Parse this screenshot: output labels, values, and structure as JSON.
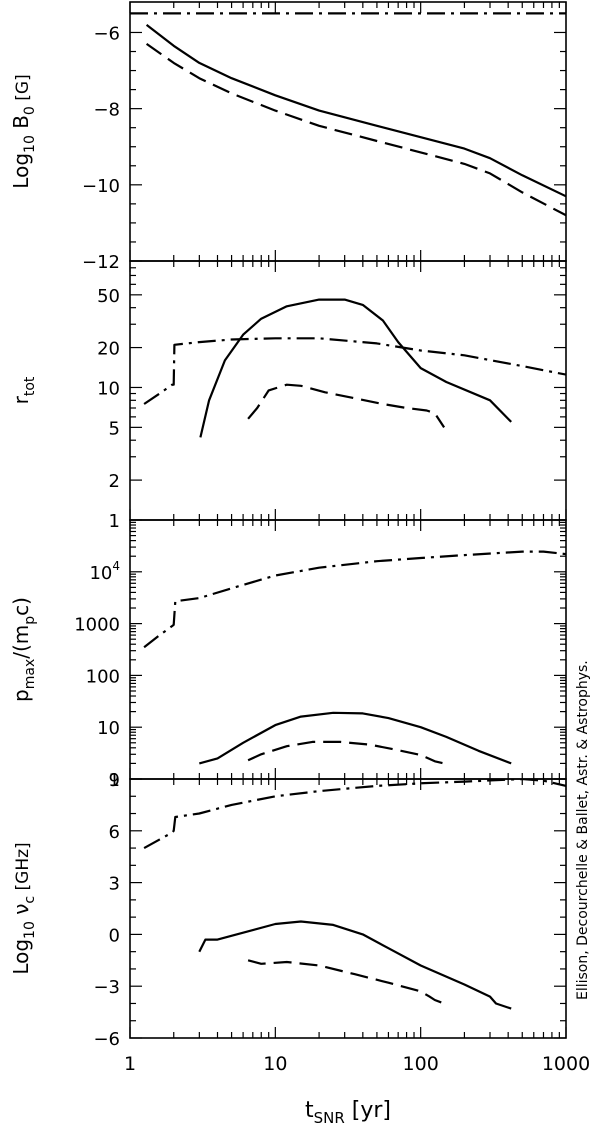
{
  "credit": "Ellison, Decourchelle & Ballet, Astr. & Astrophys.",
  "xaxis": {
    "label_main": "t",
    "label_sub": "SNR",
    "label_unit": "[yr]",
    "range": [
      1,
      1000
    ],
    "scale": "log",
    "tick_labels": [
      "1",
      "10",
      "100",
      "1000"
    ]
  },
  "chart_data": [
    {
      "type": "line",
      "panel": "top",
      "ylabel": {
        "pre": "Log",
        "pre_sub": "10",
        "main": "B",
        "main_sub": "0",
        "unit": "[G]"
      },
      "yscale": "linear",
      "ylim": [
        -12,
        -5.2
      ],
      "yticks": [
        {
          "v": -6,
          "label": "−6"
        },
        {
          "v": -8,
          "label": "−8"
        },
        {
          "v": -10,
          "label": "−10"
        },
        {
          "v": -12,
          "label": "−12"
        }
      ],
      "yminor": [
        -5.5,
        -6.5,
        -7,
        -7.5,
        -8.5,
        -9,
        -9.5,
        -10.5,
        -11,
        -11.5
      ],
      "series": [
        {
          "style": "dashdot",
          "points": [
            [
              1,
              -5.5
            ],
            [
              1000,
              -5.5
            ]
          ]
        },
        {
          "style": "solid",
          "points": [
            [
              1.3,
              -5.8
            ],
            [
              2,
              -6.35
            ],
            [
              3,
              -6.8
            ],
            [
              5,
              -7.2
            ],
            [
              10,
              -7.65
            ],
            [
              20,
              -8.05
            ],
            [
              50,
              -8.45
            ],
            [
              100,
              -8.75
            ],
            [
              200,
              -9.05
            ],
            [
              300,
              -9.3
            ],
            [
              500,
              -9.75
            ],
            [
              1000,
              -10.3
            ]
          ]
        },
        {
          "style": "dashed",
          "points": [
            [
              1.3,
              -6.3
            ],
            [
              2,
              -6.8
            ],
            [
              3,
              -7.2
            ],
            [
              5,
              -7.6
            ],
            [
              10,
              -8.05
            ],
            [
              20,
              -8.45
            ],
            [
              50,
              -8.85
            ],
            [
              100,
              -9.15
            ],
            [
              200,
              -9.45
            ],
            [
              300,
              -9.7
            ],
            [
              500,
              -10.2
            ],
            [
              1000,
              -10.8
            ]
          ]
        }
      ]
    },
    {
      "type": "line",
      "panel": "r_tot",
      "ylabel": {
        "main": "r",
        "main_sub": "tot"
      },
      "yscale": "log",
      "ylim": [
        1,
        90
      ],
      "yticks": [
        {
          "v": 1,
          "label": "1"
        },
        {
          "v": 2,
          "label": "2"
        },
        {
          "v": 5,
          "label": "5"
        },
        {
          "v": 10,
          "label": "10"
        },
        {
          "v": 20,
          "label": "20"
        },
        {
          "v": 50,
          "label": "50"
        }
      ],
      "yminor": [
        3,
        4,
        6,
        7,
        8,
        9,
        30,
        40,
        60,
        70,
        80
      ],
      "series": [
        {
          "style": "dashdot",
          "points": [
            [
              1.25,
              7.5
            ],
            [
              1.6,
              9
            ],
            [
              1.95,
              10.5
            ],
            [
              2.0,
              10.5
            ],
            [
              2.02,
              21
            ],
            [
              3,
              22
            ],
            [
              5,
              23
            ],
            [
              10,
              23.5
            ],
            [
              20,
              23.5
            ],
            [
              50,
              21.5
            ],
            [
              100,
              19
            ],
            [
              200,
              17.5
            ],
            [
              500,
              14.5
            ],
            [
              1000,
              12.5
            ]
          ]
        },
        {
          "style": "solid",
          "points": [
            [
              3.05,
              4.2
            ],
            [
              3.5,
              8
            ],
            [
              4.5,
              16
            ],
            [
              6,
              25
            ],
            [
              8,
              33
            ],
            [
              12,
              41
            ],
            [
              20,
              46
            ],
            [
              30,
              46
            ],
            [
              40,
              42
            ],
            [
              55,
              32
            ],
            [
              70,
              22
            ],
            [
              100,
              14
            ],
            [
              150,
              11
            ],
            [
              300,
              8
            ],
            [
              420,
              5.5
            ]
          ]
        },
        {
          "style": "dashed",
          "points": [
            [
              6.5,
              5.8
            ],
            [
              7.5,
              7
            ],
            [
              9,
              9.5
            ],
            [
              12,
              10.5
            ],
            [
              15,
              10.3
            ],
            [
              22,
              9.2
            ],
            [
              35,
              8.3
            ],
            [
              55,
              7.5
            ],
            [
              80,
              7.0
            ],
            [
              110,
              6.7
            ],
            [
              125,
              6.4
            ],
            [
              145,
              5.0
            ]
          ]
        }
      ]
    },
    {
      "type": "line",
      "panel": "p_max",
      "ylabel": {
        "main": "p",
        "main_sub": "max",
        "mid": "/(m",
        "mid_sub": "p",
        "end": "c)"
      },
      "yscale": "log",
      "ylim": [
        1,
        100000
      ],
      "yticks": [
        {
          "v": 1,
          "label": "1"
        },
        {
          "v": 10,
          "label": "10"
        },
        {
          "v": 100,
          "label": "100"
        },
        {
          "v": 1000,
          "label": "1000"
        },
        {
          "v": 10000,
          "label": "10",
          "sup": "4"
        }
      ],
      "yminor": [],
      "series": [
        {
          "style": "dashdot",
          "points": [
            [
              1.25,
              350
            ],
            [
              1.6,
              600
            ],
            [
              1.95,
              900
            ],
            [
              2.0,
              950
            ],
            [
              2.05,
              2700
            ],
            [
              3,
              3100
            ],
            [
              5,
              4800
            ],
            [
              10,
              8500
            ],
            [
              20,
              12000
            ],
            [
              50,
              16000
            ],
            [
              100,
              18500
            ],
            [
              200,
              21000
            ],
            [
              500,
              24500
            ],
            [
              700,
              24500
            ],
            [
              1000,
              22000
            ]
          ]
        },
        {
          "style": "solid",
          "points": [
            [
              3,
              2.0
            ],
            [
              4,
              2.5
            ],
            [
              6,
              5
            ],
            [
              10,
              11
            ],
            [
              15,
              16
            ],
            [
              25,
              19
            ],
            [
              40,
              18.5
            ],
            [
              60,
              15
            ],
            [
              100,
              10
            ],
            [
              150,
              6.5
            ],
            [
              250,
              3.5
            ],
            [
              420,
              2.0
            ]
          ]
        },
        {
          "style": "dashed",
          "points": [
            [
              6.5,
              2.3
            ],
            [
              8,
              3
            ],
            [
              12,
              4.3
            ],
            [
              18,
              5.2
            ],
            [
              28,
              5.2
            ],
            [
              45,
              4.6
            ],
            [
              70,
              3.6
            ],
            [
              100,
              2.9
            ],
            [
              125,
              2.2
            ],
            [
              145,
              2.0
            ]
          ]
        }
      ]
    },
    {
      "type": "line",
      "panel": "nu_c",
      "ylabel": {
        "pre": "Log",
        "pre_sub": "10",
        "main": "ν",
        "main_sub": "c",
        "unit": "[GHz]"
      },
      "yscale": "linear",
      "ylim": [
        -6,
        9
      ],
      "yticks": [
        {
          "v": -6,
          "label": "−6"
        },
        {
          "v": -3,
          "label": "−3"
        },
        {
          "v": 0,
          "label": "0"
        },
        {
          "v": 3,
          "label": "3"
        },
        {
          "v": 6,
          "label": "6"
        },
        {
          "v": 9,
          "label": "9"
        }
      ],
      "yminor": [
        -5,
        -4,
        -2,
        -1,
        1,
        2,
        4,
        5,
        7,
        8
      ],
      "series": [
        {
          "style": "dashdot",
          "points": [
            [
              1.25,
              5.0
            ],
            [
              1.6,
              5.5
            ],
            [
              1.95,
              5.9
            ],
            [
              2.0,
              6.0
            ],
            [
              2.05,
              6.8
            ],
            [
              3,
              7.0
            ],
            [
              5,
              7.5
            ],
            [
              10,
              8.0
            ],
            [
              20,
              8.3
            ],
            [
              50,
              8.6
            ],
            [
              100,
              8.75
            ],
            [
              200,
              8.85
            ],
            [
              500,
              9.0
            ],
            [
              700,
              8.9
            ],
            [
              1000,
              8.6
            ]
          ]
        },
        {
          "style": "solid",
          "points": [
            [
              3,
              -1.0
            ],
            [
              3.3,
              -0.3
            ],
            [
              4,
              -0.3
            ],
            [
              6,
              0.1
            ],
            [
              10,
              0.6
            ],
            [
              15,
              0.75
            ],
            [
              25,
              0.55
            ],
            [
              40,
              0.0
            ],
            [
              60,
              -0.8
            ],
            [
              100,
              -1.8
            ],
            [
              200,
              -2.9
            ],
            [
              300,
              -3.6
            ],
            [
              330,
              -4.0
            ],
            [
              420,
              -4.3
            ]
          ]
        },
        {
          "style": "dashed",
          "points": [
            [
              6.5,
              -1.5
            ],
            [
              8,
              -1.7
            ],
            [
              12,
              -1.6
            ],
            [
              20,
              -1.8
            ],
            [
              35,
              -2.3
            ],
            [
              60,
              -2.8
            ],
            [
              100,
              -3.3
            ],
            [
              115,
              -3.6
            ],
            [
              125,
              -3.8
            ],
            [
              145,
              -4.0
            ]
          ]
        }
      ]
    }
  ]
}
